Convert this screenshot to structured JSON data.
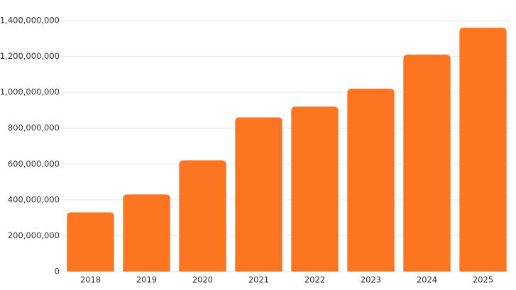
{
  "chart_data": {
    "type": "bar",
    "categories": [
      "2018",
      "2019",
      "2020",
      "2021",
      "2022",
      "2023",
      "2024",
      "2025"
    ],
    "values": [
      330000000,
      430000000,
      620000000,
      860000000,
      920000000,
      1020000000,
      1210000000,
      1360000000
    ],
    "color": "#fd7520",
    "ylim": [
      0,
      1400000000
    ],
    "yticks": [
      0,
      {
        "value": 200000000,
        "label": "200,000,000"
      },
      {
        "value": 400000000,
        "label": "400,000,000"
      },
      {
        "value": 600000000,
        "label": "600,000,000"
      },
      {
        "value": 800000000,
        "label": "800,000,000"
      },
      {
        "value": 1000000000,
        "label": "1,000,000,000"
      },
      {
        "value": 1200000000,
        "label": "1,200,000,000"
      },
      {
        "value": 1400000000,
        "label": "1,400,000,000"
      }
    ],
    "grid": true
  }
}
